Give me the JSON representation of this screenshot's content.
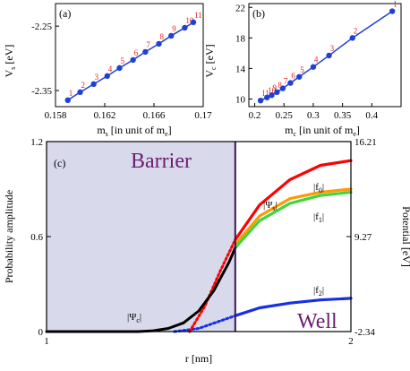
{
  "chart_data": [
    {
      "type": "scatter",
      "panel_label": "(a)",
      "xlabel_main": "m",
      "xlabel_sub": "s",
      "xlabel_rest": " [in unit of m",
      "xlabel_unit_sub": "e",
      "xlabel_end": "]",
      "ylabel_main": "V",
      "ylabel_sub": "s",
      "ylabel_rest": " [eV]",
      "xlim": [
        0.158,
        0.17
      ],
      "ylim": [
        -2.375,
        -2.215
      ],
      "xticks": [
        "0.158",
        "0.162",
        "0.166",
        "0.17"
      ],
      "xtick_vals": [
        0.158,
        0.162,
        0.166,
        0.17
      ],
      "yticks": [
        "-2.25",
        "-2.35"
      ],
      "ytick_vals": [
        -2.25,
        -2.35
      ],
      "series_color": "#1f3fd6",
      "point_label_color": "#e0202a",
      "points": [
        {
          "x": 0.159,
          "y": -2.365,
          "label": "1"
        },
        {
          "x": 0.16,
          "y": -2.3525,
          "label": "2"
        },
        {
          "x": 0.1611,
          "y": -2.34,
          "label": "3"
        },
        {
          "x": 0.1622,
          "y": -2.3275,
          "label": "4"
        },
        {
          "x": 0.1632,
          "y": -2.315,
          "label": "5"
        },
        {
          "x": 0.1643,
          "y": -2.3025,
          "label": "6"
        },
        {
          "x": 0.1653,
          "y": -2.29,
          "label": "7"
        },
        {
          "x": 0.1664,
          "y": -2.2775,
          "label": "8"
        },
        {
          "x": 0.1674,
          "y": -2.265,
          "label": "9"
        },
        {
          "x": 0.1685,
          "y": -2.2525,
          "label": "10"
        },
        {
          "x": 0.1692,
          "y": -2.244,
          "label": "11"
        }
      ]
    },
    {
      "type": "scatter",
      "panel_label": "(b)",
      "xlabel_main": "m",
      "xlabel_sub": "c",
      "xlabel_rest": " [in unit of m",
      "xlabel_unit_sub": "e",
      "xlabel_end": "]",
      "ylabel_main": "V",
      "ylabel_sub": "c",
      "ylabel_rest": " [eV]",
      "xlim": [
        0.19,
        0.45
      ],
      "ylim": [
        9,
        22.5
      ],
      "xticks": [
        "0.2",
        "0.25",
        "0.3",
        "0.35",
        "0.4"
      ],
      "xtick_vals": [
        0.2,
        0.25,
        0.3,
        0.35,
        0.4
      ],
      "yticks": [
        "10",
        "14",
        "18",
        "22"
      ],
      "ytick_vals": [
        10,
        14,
        18,
        22
      ],
      "series_color": "#1f3fd6",
      "point_label_color": "#e0202a",
      "points": [
        {
          "x": 0.435,
          "y": 21.5,
          "label": "1"
        },
        {
          "x": 0.367,
          "y": 18.0,
          "label": "2"
        },
        {
          "x": 0.327,
          "y": 15.7,
          "label": "3"
        },
        {
          "x": 0.3,
          "y": 14.2,
          "label": "4"
        },
        {
          "x": 0.276,
          "y": 12.9,
          "label": "5"
        },
        {
          "x": 0.261,
          "y": 12.1,
          "label": "6"
        },
        {
          "x": 0.248,
          "y": 11.4,
          "label": "7"
        },
        {
          "x": 0.238,
          "y": 10.9,
          "label": "8"
        },
        {
          "x": 0.229,
          "y": 10.5,
          "label": "9"
        },
        {
          "x": 0.221,
          "y": 10.2,
          "label": "10"
        },
        {
          "x": 0.21,
          "y": 9.8,
          "label": "11"
        }
      ]
    },
    {
      "type": "line",
      "panel_label": "(c)",
      "xlabel": "r [nm]",
      "ylabel_left": "Probability amplitude",
      "ylabel_right": "Potential [eV]",
      "xlim": [
        1,
        2
      ],
      "ylim": [
        0,
        1.2
      ],
      "xticks": [
        "1",
        "2"
      ],
      "xtick_vals": [
        1,
        2
      ],
      "yticks_left": [
        "0",
        "0.6",
        "1.2"
      ],
      "ytick_left_vals": [
        0,
        0.6,
        1.2
      ],
      "yticks_right": [
        "-2.34",
        "9.27",
        "16.21"
      ],
      "ytick_right_vals": [
        0,
        0.6,
        1.2
      ],
      "barrier_end": 1.62,
      "barrier_label": "Barrier",
      "well_label": "Well",
      "barrier_color": "#d9d9ec",
      "wall_color": "#3a1552",
      "text_color": "#6a1e6f",
      "series": [
        {
          "name": "|Ψ_c|",
          "color": "#000000",
          "x": [
            1.0,
            1.2,
            1.3,
            1.35,
            1.4,
            1.45,
            1.5,
            1.55,
            1.6,
            1.62
          ],
          "y": [
            0.0,
            0.0,
            0.0,
            0.005,
            0.02,
            0.055,
            0.13,
            0.26,
            0.44,
            0.53
          ]
        },
        {
          "name": "f0",
          "color": "#ff0000",
          "x": [
            1.62,
            1.7,
            1.8,
            1.9,
            2.0
          ],
          "y": [
            0.58,
            0.8,
            0.96,
            1.05,
            1.08
          ]
        },
        {
          "name": "f0-dotted",
          "color": "#ff0000",
          "x": [
            1.47,
            1.52,
            1.57,
            1.62
          ],
          "y": [
            0.0,
            0.16,
            0.38,
            0.58
          ]
        },
        {
          "name": "f1",
          "color": "#ff9a00",
          "x": [
            1.62,
            1.7,
            1.8,
            1.9,
            2.0
          ],
          "y": [
            0.55,
            0.73,
            0.84,
            0.88,
            0.9
          ]
        },
        {
          "name": "f1-green",
          "color": "#3fd63f",
          "x": [
            1.62,
            1.7,
            1.8,
            1.9,
            2.0
          ],
          "y": [
            0.53,
            0.7,
            0.81,
            0.86,
            0.88
          ]
        },
        {
          "name": "f2",
          "color": "#1530e8",
          "x": [
            1.62,
            1.7,
            1.8,
            1.9,
            2.0
          ],
          "y": [
            0.1,
            0.15,
            0.18,
            0.2,
            0.21
          ]
        },
        {
          "name": "f2-dotted",
          "color": "#1530e8",
          "x": [
            1.42,
            1.5,
            1.56,
            1.62
          ],
          "y": [
            0.0,
            0.02,
            0.06,
            0.1
          ]
        }
      ],
      "labels": {
        "psi_c": "|Ψ",
        "psi_c_sub": "c",
        "psi_s": "|Ψ",
        "psi_s_sub": "s",
        "f0": "|f",
        "f0_sub": "0",
        "f1": "|f",
        "f1_sub": "1",
        "f2": "|f",
        "f2_sub": "2"
      }
    }
  ]
}
